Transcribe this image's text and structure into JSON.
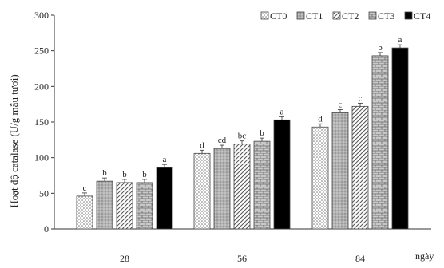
{
  "chart_data": {
    "type": "bar",
    "ylabel": "Hoạt độ catalase (U/g mẫu tươi)",
    "xlabel": "ngày",
    "categories": [
      "28",
      "56",
      "84"
    ],
    "ylim": [
      0,
      300
    ],
    "yticks": [
      0,
      50,
      100,
      150,
      200,
      250,
      300
    ],
    "grid": false,
    "legend_position": "top-right",
    "series": [
      {
        "name": "CT0",
        "values": [
          46,
          106,
          143
        ],
        "sig": [
          "c",
          "d",
          "d"
        ],
        "color": "#ffffff",
        "pattern": "dots"
      },
      {
        "name": "CT1",
        "values": [
          67,
          113,
          163
        ],
        "sig": [
          "b",
          "cd",
          "c"
        ],
        "color": "#b5b5b5",
        "pattern": "crosshatch"
      },
      {
        "name": "CT2",
        "values": [
          65,
          119,
          172
        ],
        "sig": [
          "b",
          "bc",
          "c"
        ],
        "color": "#ffffff",
        "pattern": "diagonal"
      },
      {
        "name": "CT3",
        "values": [
          65,
          123,
          243
        ],
        "sig": [
          "b",
          "b",
          "b"
        ],
        "color": "#c8c8c8",
        "pattern": "brick"
      },
      {
        "name": "CT4",
        "values": [
          86,
          153,
          254
        ],
        "sig": [
          "a",
          "a",
          "a"
        ],
        "color": "#000000",
        "pattern": "solid"
      }
    ]
  }
}
